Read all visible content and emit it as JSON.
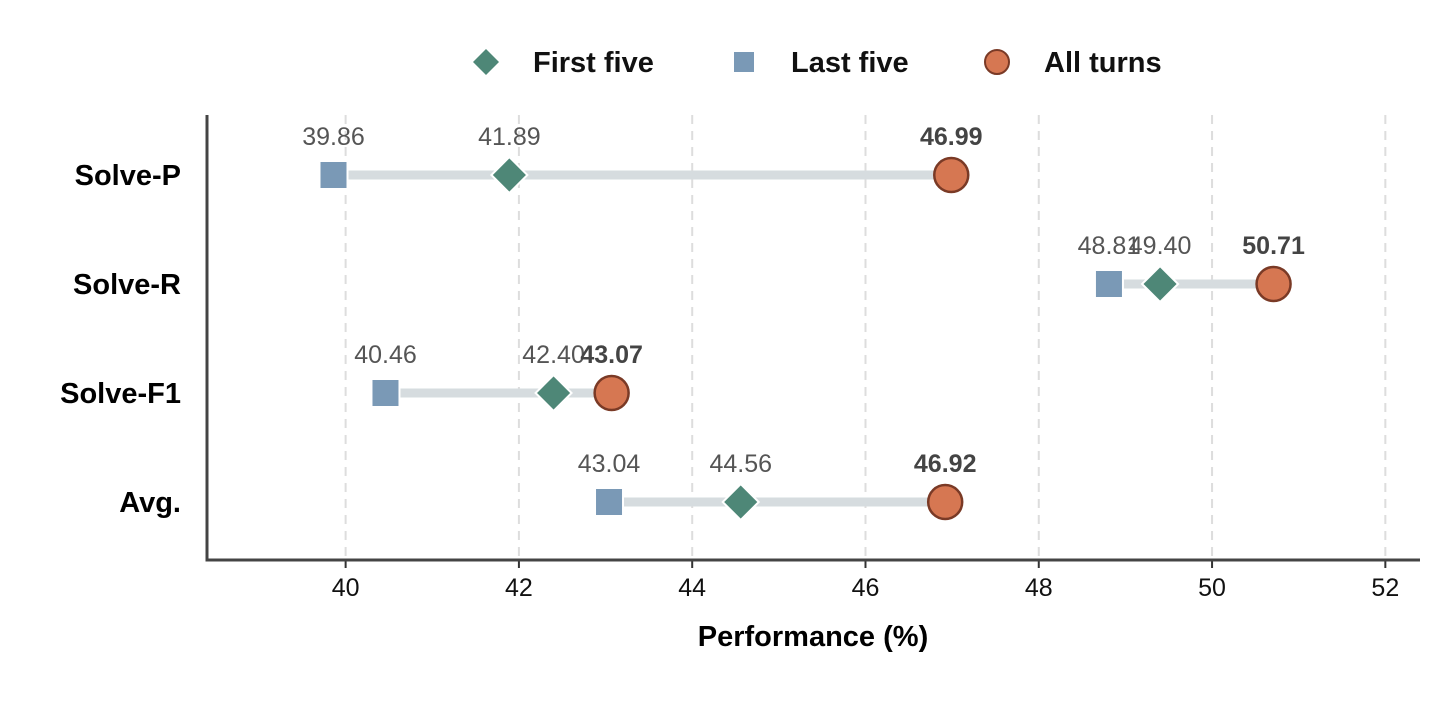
{
  "chart_data": {
    "type": "dumbbell",
    "xlabel": "Performance (%)",
    "xlim": [
      38.4,
      52.4
    ],
    "xticks": [
      40,
      42,
      44,
      46,
      48,
      50,
      52
    ],
    "categories": [
      "Solve-P",
      "Solve-R",
      "Solve-F1",
      "Avg."
    ],
    "grid": "vertical dashed",
    "legend_position": "top-center",
    "series": [
      {
        "name": "First five",
        "marker": "diamond",
        "color": "#4e8777",
        "values": [
          41.89,
          49.4,
          42.4,
          44.56
        ],
        "label_style": "normal"
      },
      {
        "name": "Last five",
        "marker": "square",
        "color": "#7a99b6",
        "values": [
          39.86,
          48.81,
          40.46,
          43.04
        ],
        "label_style": "normal"
      },
      {
        "name": "All turns",
        "marker": "circle",
        "color": "#d67752",
        "edge_color": "#7a3a26",
        "values": [
          46.99,
          50.71,
          43.07,
          46.92
        ],
        "label_style": "bold"
      }
    ],
    "connector_color": "#d6dcdf"
  }
}
